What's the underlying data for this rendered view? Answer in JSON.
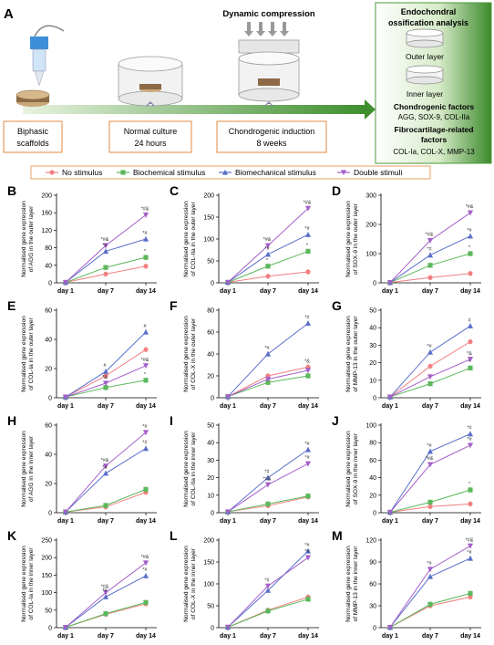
{
  "figure_letter": "A",
  "schematic": {
    "steps": [
      {
        "lines": [
          "Biphasic",
          "scaffolds"
        ]
      },
      {
        "lines": [
          "Normal culture",
          "24 hours"
        ]
      },
      {
        "lines": [
          "Chondrogenic induction",
          "8 weeks"
        ]
      }
    ],
    "compression_label": "Dynamic compression",
    "analysis_panel": {
      "title_lines": [
        "Endochondral",
        "ossification analysis"
      ],
      "outer_label": "Outer layer",
      "inner_label": "Inner layer",
      "chondro_title": "Chondrogenic factors",
      "chondro_items": "AGG, SOX-9, COL-IIa",
      "fibro_title_lines": [
        "Fibrocartilage-related",
        "factors"
      ],
      "fibro_items": "COL-Ia, COL-X, MMP-13"
    }
  },
  "legend": [
    {
      "name": "No stimulus",
      "color": "#f08080",
      "marker": "circle"
    },
    {
      "name": "Biochemical stimulus",
      "color": "#5cb85c",
      "marker": "square"
    },
    {
      "name": "Biomechanical stimulus",
      "color": "#5a6fc9",
      "marker": "triangle"
    },
    {
      "name": "Double stimuli",
      "color": "#a45fc9",
      "marker": "triangle-down"
    }
  ],
  "chart_data": [
    {
      "letter": "B",
      "type": "line",
      "categories": [
        "day 1",
        "day 7",
        "day 14"
      ],
      "ylabel": "Normalised gene expression of AGG in the outer layer",
      "ylim": [
        0,
        200
      ],
      "yticks": [
        0,
        40,
        80,
        120,
        160,
        200
      ],
      "series": [
        {
          "name": "No stimulus",
          "values": [
            1,
            20,
            38
          ]
        },
        {
          "name": "Biochemical stimulus",
          "values": [
            1,
            35,
            58
          ]
        },
        {
          "name": "Biomechanical stimulus",
          "values": [
            1,
            72,
            100
          ]
        },
        {
          "name": "Double stimuli",
          "values": [
            1,
            85,
            155
          ]
        }
      ],
      "annotations": [
        {
          "cat": 1,
          "value": 72,
          "text": "*#"
        },
        {
          "cat": 1,
          "value": 85,
          "text": "*#&"
        },
        {
          "cat": 2,
          "value": 58,
          "text": "*"
        },
        {
          "cat": 2,
          "value": 100,
          "text": "*#"
        },
        {
          "cat": 2,
          "value": 155,
          "text": "*#&"
        }
      ]
    },
    {
      "letter": "C",
      "type": "line",
      "categories": [
        "day 1",
        "day 7",
        "day 14"
      ],
      "ylabel": "Normalised gene expression of COL-IIa in the outer layer",
      "ylim": [
        0,
        200
      ],
      "yticks": [
        0,
        50,
        100,
        150,
        200
      ],
      "series": [
        {
          "name": "No stimulus",
          "values": [
            1,
            15,
            25
          ]
        },
        {
          "name": "Biochemical stimulus",
          "values": [
            1,
            38,
            72
          ]
        },
        {
          "name": "Biomechanical stimulus",
          "values": [
            1,
            65,
            110
          ]
        },
        {
          "name": "Double stimuli",
          "values": [
            1,
            85,
            170
          ]
        }
      ],
      "annotations": [
        {
          "cat": 1,
          "value": 38,
          "text": "*"
        },
        {
          "cat": 1,
          "value": 65,
          "text": "*#"
        },
        {
          "cat": 1,
          "value": 85,
          "text": "*#&"
        },
        {
          "cat": 2,
          "value": 72,
          "text": "*"
        },
        {
          "cat": 2,
          "value": 110,
          "text": "*#"
        },
        {
          "cat": 2,
          "value": 170,
          "text": "*#&"
        }
      ]
    },
    {
      "letter": "D",
      "type": "line",
      "categories": [
        "day 1",
        "day 7",
        "day 14"
      ],
      "ylabel": "Normalised gene expression of SOX-9 in the outer layer",
      "ylim": [
        0,
        300
      ],
      "yticks": [
        0,
        100,
        200,
        300
      ],
      "series": [
        {
          "name": "No stimulus",
          "values": [
            1,
            18,
            32
          ]
        },
        {
          "name": "Biochemical stimulus",
          "values": [
            1,
            60,
            100
          ]
        },
        {
          "name": "Biomechanical stimulus",
          "values": [
            1,
            95,
            160
          ]
        },
        {
          "name": "Double stimuli",
          "values": [
            1,
            145,
            240
          ]
        }
      ],
      "annotations": [
        {
          "cat": 1,
          "value": 95,
          "text": "*#"
        },
        {
          "cat": 1,
          "value": 145,
          "text": "*#&"
        },
        {
          "cat": 2,
          "value": 100,
          "text": "*"
        },
        {
          "cat": 2,
          "value": 160,
          "text": "*#"
        },
        {
          "cat": 2,
          "value": 240,
          "text": "*#&"
        }
      ]
    },
    {
      "letter": "E",
      "type": "line",
      "categories": [
        "day 1",
        "day 7",
        "day 14"
      ],
      "ylabel": "Normalised gene expression of COL-Ia in the outer layer",
      "ylim": [
        0,
        60
      ],
      "yticks": [
        0,
        20,
        40,
        60
      ],
      "series": [
        {
          "name": "No stimulus",
          "values": [
            0.5,
            15,
            33
          ]
        },
        {
          "name": "Biochemical stimulus",
          "values": [
            0.5,
            7,
            12
          ]
        },
        {
          "name": "Biomechanical stimulus",
          "values": [
            0.5,
            18,
            45
          ]
        },
        {
          "name": "Double stimuli",
          "values": [
            0.5,
            10,
            22
          ]
        }
      ],
      "annotations": [
        {
          "cat": 1,
          "value": 18,
          "text": "#"
        },
        {
          "cat": 1,
          "value": 10,
          "text": "*&"
        },
        {
          "cat": 2,
          "value": 45,
          "text": "#"
        },
        {
          "cat": 2,
          "value": 22,
          "text": "*#&"
        },
        {
          "cat": 2,
          "value": 12,
          "text": "*"
        }
      ]
    },
    {
      "letter": "F",
      "type": "line",
      "categories": [
        "day 1",
        "day 7",
        "day 14"
      ],
      "ylabel": "Normalised gene expression of COL-X in the outer layer",
      "ylim": [
        0,
        80
      ],
      "yticks": [
        0,
        20,
        40,
        60,
        80
      ],
      "series": [
        {
          "name": "No stimulus",
          "values": [
            1,
            20,
            28
          ]
        },
        {
          "name": "Biochemical stimulus",
          "values": [
            1,
            14,
            20
          ]
        },
        {
          "name": "Biomechanical stimulus",
          "values": [
            1,
            40,
            68
          ]
        },
        {
          "name": "Double stimuli",
          "values": [
            1,
            17,
            25
          ]
        }
      ],
      "annotations": [
        {
          "cat": 1,
          "value": 40,
          "text": "*#"
        },
        {
          "cat": 2,
          "value": 68,
          "text": "*#"
        },
        {
          "cat": 2,
          "value": 28,
          "text": "*&"
        }
      ]
    },
    {
      "letter": "G",
      "type": "line",
      "categories": [
        "day 1",
        "day 7",
        "day 14"
      ],
      "ylabel": "Normalised gene expression of MMP-13 in the outer layer",
      "ylim": [
        0,
        50
      ],
      "yticks": [
        0,
        10,
        20,
        30,
        40,
        50
      ],
      "series": [
        {
          "name": "No stimulus",
          "values": [
            0.5,
            18,
            32
          ]
        },
        {
          "name": "Biochemical stimulus",
          "values": [
            0.5,
            8,
            17
          ]
        },
        {
          "name": "Biomechanical stimulus",
          "values": [
            0.5,
            26,
            41
          ]
        },
        {
          "name": "Double stimuli",
          "values": [
            0.5,
            12,
            22
          ]
        }
      ],
      "annotations": [
        {
          "cat": 1,
          "value": 26,
          "text": "*#"
        },
        {
          "cat": 2,
          "value": 41,
          "text": "#"
        },
        {
          "cat": 2,
          "value": 22,
          "text": "*&"
        },
        {
          "cat": 2,
          "value": 17,
          "text": "*"
        }
      ]
    },
    {
      "letter": "H",
      "type": "line",
      "categories": [
        "day 1",
        "day 7",
        "day 14"
      ],
      "ylabel": "Normalised gene expression of AGG in the inner layer",
      "ylim": [
        0,
        60
      ],
      "yticks": [
        0,
        20,
        40,
        60
      ],
      "series": [
        {
          "name": "No stimulus",
          "values": [
            0.5,
            4,
            14
          ]
        },
        {
          "name": "Biochemical stimulus",
          "values": [
            0.5,
            5,
            16
          ]
        },
        {
          "name": "Biomechanical stimulus",
          "values": [
            0.5,
            27,
            44
          ]
        },
        {
          "name": "Double stimuli",
          "values": [
            0.5,
            32,
            55
          ]
        }
      ],
      "annotations": [
        {
          "cat": 1,
          "value": 27,
          "text": "*#"
        },
        {
          "cat": 1,
          "value": 32,
          "text": "*#&"
        },
        {
          "cat": 2,
          "value": 44,
          "text": "*#"
        },
        {
          "cat": 2,
          "value": 55,
          "text": "*#"
        }
      ]
    },
    {
      "letter": "I",
      "type": "line",
      "categories": [
        "day 1",
        "day 7",
        "day 14"
      ],
      "ylabel": "Normalised gene expression of COL-IIa in the inner layer",
      "ylim": [
        0,
        50
      ],
      "yticks": [
        0,
        10,
        20,
        30,
        40,
        50
      ],
      "series": [
        {
          "name": "No stimulus",
          "values": [
            0.5,
            4,
            9
          ]
        },
        {
          "name": "Biochemical stimulus",
          "values": [
            0.5,
            5,
            9.5
          ]
        },
        {
          "name": "Biomechanical stimulus",
          "values": [
            0.5,
            20,
            36
          ]
        },
        {
          "name": "Double stimuli",
          "values": [
            0.5,
            16,
            28
          ]
        }
      ],
      "annotations": [
        {
          "cat": 1,
          "value": 20,
          "text": "*#"
        },
        {
          "cat": 1,
          "value": 16,
          "text": "*#&"
        },
        {
          "cat": 2,
          "value": 36,
          "text": "*#"
        },
        {
          "cat": 2,
          "value": 28,
          "text": "*#"
        }
      ]
    },
    {
      "letter": "J",
      "type": "line",
      "categories": [
        "day 1",
        "day 7",
        "day 14"
      ],
      "ylabel": "Normalised gene expression of SOX-9 in the inner layer",
      "ylim": [
        0,
        100
      ],
      "yticks": [
        0,
        20,
        40,
        60,
        80,
        100
      ],
      "series": [
        {
          "name": "No stimulus",
          "values": [
            0.5,
            7,
            10
          ]
        },
        {
          "name": "Biochemical stimulus",
          "values": [
            0.5,
            12,
            26
          ]
        },
        {
          "name": "Biomechanical stimulus",
          "values": [
            0.5,
            70,
            90
          ]
        },
        {
          "name": "Double stimuli",
          "values": [
            0.5,
            55,
            77
          ]
        }
      ],
      "annotations": [
        {
          "cat": 1,
          "value": 70,
          "text": "*#"
        },
        {
          "cat": 1,
          "value": 55,
          "text": "*#&"
        },
        {
          "cat": 2,
          "value": 90,
          "text": "*#"
        },
        {
          "cat": 2,
          "value": 77,
          "text": "*#"
        },
        {
          "cat": 2,
          "value": 26,
          "text": "*"
        }
      ]
    },
    {
      "letter": "K",
      "type": "line",
      "categories": [
        "day 1",
        "day 7",
        "day 14"
      ],
      "ylabel": "Normalised gene expression of COL-Ia in the inner layer",
      "ylim": [
        0,
        250
      ],
      "yticks": [
        0,
        50,
        100,
        150,
        200,
        250
      ],
      "series": [
        {
          "name": "No stimulus",
          "values": [
            1,
            38,
            68
          ]
        },
        {
          "name": "Biochemical stimulus",
          "values": [
            1,
            40,
            72
          ]
        },
        {
          "name": "Biomechanical stimulus",
          "values": [
            1,
            88,
            148
          ]
        },
        {
          "name": "Double stimuli",
          "values": [
            1,
            100,
            185
          ]
        }
      ],
      "annotations": [
        {
          "cat": 1,
          "value": 100,
          "text": "*#&"
        },
        {
          "cat": 1,
          "value": 88,
          "text": "*#"
        },
        {
          "cat": 2,
          "value": 185,
          "text": "*#&"
        },
        {
          "cat": 2,
          "value": 148,
          "text": "*#"
        }
      ]
    },
    {
      "letter": "L",
      "type": "line",
      "categories": [
        "day 1",
        "day 7",
        "day 14"
      ],
      "ylabel": "Normalised gene expression of COL-X in the inner layer",
      "ylim": [
        0,
        200
      ],
      "yticks": [
        0,
        50,
        100,
        150,
        200
      ],
      "series": [
        {
          "name": "No stimulus",
          "values": [
            1,
            40,
            70
          ]
        },
        {
          "name": "Biochemical stimulus",
          "values": [
            1,
            38,
            65
          ]
        },
        {
          "name": "Biomechanical stimulus",
          "values": [
            1,
            85,
            175
          ]
        },
        {
          "name": "Double stimuli",
          "values": [
            1,
            95,
            160
          ]
        }
      ],
      "annotations": [
        {
          "cat": 1,
          "value": 95,
          "text": "*#"
        },
        {
          "cat": 2,
          "value": 175,
          "text": "*#"
        },
        {
          "cat": 2,
          "value": 160,
          "text": "*#"
        }
      ]
    },
    {
      "letter": "M",
      "type": "line",
      "categories": [
        "day 1",
        "day 7",
        "day 14"
      ],
      "ylabel": "Normalised gene expression of MMP-13 in the inner layer",
      "ylim": [
        0,
        120
      ],
      "yticks": [
        0,
        30,
        60,
        90,
        120
      ],
      "series": [
        {
          "name": "No stimulus",
          "values": [
            0.5,
            30,
            42
          ]
        },
        {
          "name": "Biochemical stimulus",
          "values": [
            0.5,
            32,
            47
          ]
        },
        {
          "name": "Biomechanical stimulus",
          "values": [
            0.5,
            70,
            95
          ]
        },
        {
          "name": "Double stimuli",
          "values": [
            0.5,
            80,
            112
          ]
        }
      ],
      "annotations": [
        {
          "cat": 1,
          "value": 80,
          "text": "*#"
        },
        {
          "cat": 2,
          "value": 112,
          "text": "*#&"
        },
        {
          "cat": 2,
          "value": 95,
          "text": "*#"
        }
      ]
    }
  ]
}
